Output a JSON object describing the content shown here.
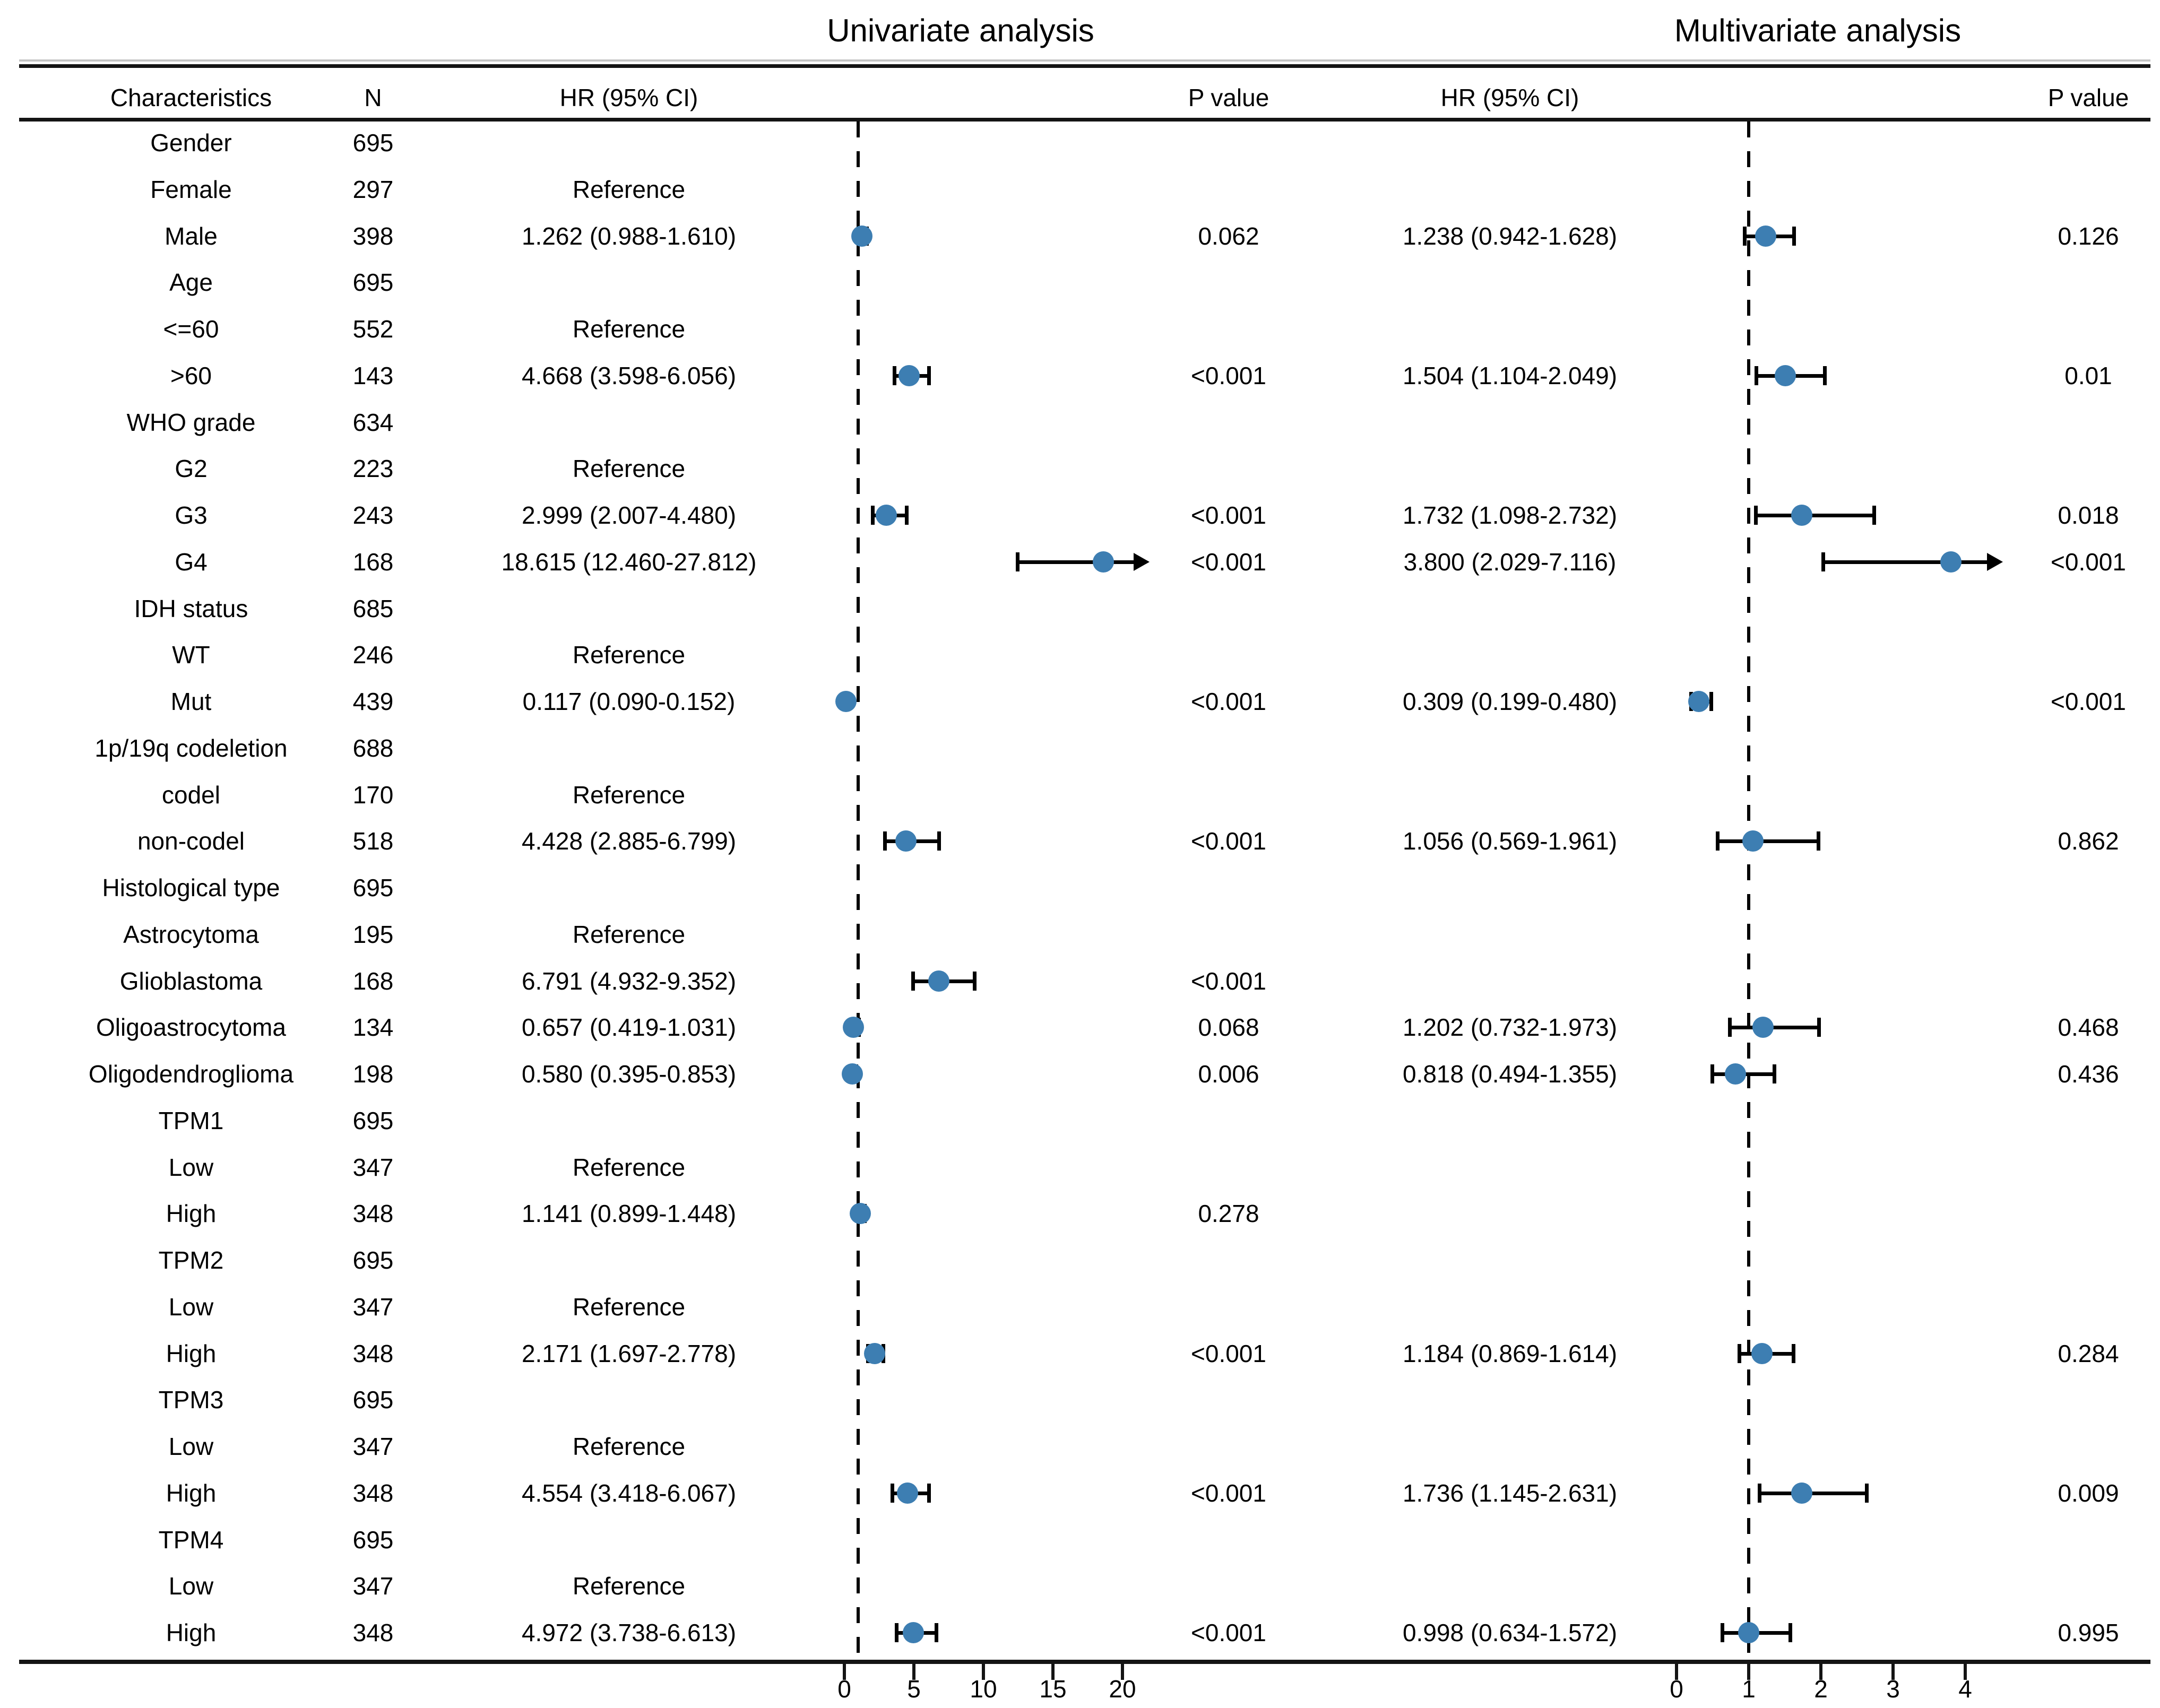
{
  "chart_data": {
    "type": "forest",
    "panels": [
      {
        "name": "Univariate analysis",
        "axis_ticks": [
          0,
          5,
          10,
          15,
          20
        ],
        "ref_line": 1
      },
      {
        "name": "Multivariate analysis",
        "axis_ticks": [
          0,
          1,
          2,
          3,
          4
        ],
        "ref_line": 1
      }
    ],
    "columns": [
      "Characteristics",
      "N",
      "HR (95% CI)",
      "P value",
      "HR (95% CI)",
      "P value"
    ],
    "marker_color": "#3d7eb2",
    "rows": [
      {
        "label": "Gender",
        "n": "695"
      },
      {
        "label": "Female",
        "n": "297",
        "uni_hr_text": "Reference"
      },
      {
        "label": "Male",
        "n": "398",
        "uni_hr_text": "1.262 (0.988-1.610)",
        "uni_p": "0.062",
        "uni": {
          "hr": 1.262,
          "lo": 0.988,
          "hi": 1.61,
          "arrow": false
        },
        "multi_hr_text": "1.238 (0.942-1.628)",
        "multi_p": "0.126",
        "multi": {
          "hr": 1.238,
          "lo": 0.942,
          "hi": 1.628,
          "arrow": false
        }
      },
      {
        "label": "Age",
        "n": "695"
      },
      {
        "label": "<=60",
        "n": "552",
        "uni_hr_text": "Reference"
      },
      {
        "label": ">60",
        "n": "143",
        "uni_hr_text": "4.668 (3.598-6.056)",
        "uni_p": "<0.001",
        "uni": {
          "hr": 4.668,
          "lo": 3.598,
          "hi": 6.056,
          "arrow": false
        },
        "multi_hr_text": "1.504 (1.104-2.049)",
        "multi_p": "0.01",
        "multi": {
          "hr": 1.504,
          "lo": 1.104,
          "hi": 2.049,
          "arrow": false
        }
      },
      {
        "label": "WHO grade",
        "n": "634"
      },
      {
        "label": "G2",
        "n": "223",
        "uni_hr_text": "Reference"
      },
      {
        "label": "G3",
        "n": "243",
        "uni_hr_text": "2.999 (2.007-4.480)",
        "uni_p": "<0.001",
        "uni": {
          "hr": 2.999,
          "lo": 2.007,
          "hi": 4.48,
          "arrow": false
        },
        "multi_hr_text": "1.732 (1.098-2.732)",
        "multi_p": "0.018",
        "multi": {
          "hr": 1.732,
          "lo": 1.098,
          "hi": 2.732,
          "arrow": false
        }
      },
      {
        "label": "G4",
        "n": "168",
        "uni_hr_text": "18.615 (12.460-27.812)",
        "uni_p": "<0.001",
        "uni": {
          "hr": 18.615,
          "lo": 12.46,
          "hi": 27.812,
          "arrow": true
        },
        "multi_hr_text": "3.800 (2.029-7.116)",
        "multi_p": "<0.001",
        "multi": {
          "hr": 3.8,
          "lo": 2.029,
          "hi": 7.116,
          "arrow": true
        }
      },
      {
        "label": "IDH status",
        "n": "685"
      },
      {
        "label": "WT",
        "n": "246",
        "uni_hr_text": "Reference"
      },
      {
        "label": "Mut",
        "n": "439",
        "uni_hr_text": "0.117 (0.090-0.152)",
        "uni_p": "<0.001",
        "uni": {
          "hr": 0.117,
          "lo": 0.09,
          "hi": 0.152,
          "arrow": false
        },
        "multi_hr_text": "0.309 (0.199-0.480)",
        "multi_p": "<0.001",
        "multi": {
          "hr": 0.309,
          "lo": 0.199,
          "hi": 0.48,
          "arrow": false
        }
      },
      {
        "label": "1p/19q codeletion",
        "n": "688"
      },
      {
        "label": "codel",
        "n": "170",
        "uni_hr_text": "Reference"
      },
      {
        "label": "non-codel",
        "n": "518",
        "uni_hr_text": "4.428 (2.885-6.799)",
        "uni_p": "<0.001",
        "uni": {
          "hr": 4.428,
          "lo": 2.885,
          "hi": 6.799,
          "arrow": false
        },
        "multi_hr_text": "1.056 (0.569-1.961)",
        "multi_p": "0.862",
        "multi": {
          "hr": 1.056,
          "lo": 0.569,
          "hi": 1.961,
          "arrow": false
        }
      },
      {
        "label": "Histological type",
        "n": "695"
      },
      {
        "label": "Astrocytoma",
        "n": "195",
        "uni_hr_text": "Reference"
      },
      {
        "label": "Glioblastoma",
        "n": "168",
        "uni_hr_text": "6.791 (4.932-9.352)",
        "uni_p": "<0.001",
        "uni": {
          "hr": 6.791,
          "lo": 4.932,
          "hi": 9.352,
          "arrow": false
        }
      },
      {
        "label": "Oligoastrocytoma",
        "n": "134",
        "uni_hr_text": "0.657 (0.419-1.031)",
        "uni_p": "0.068",
        "uni": {
          "hr": 0.657,
          "lo": 0.419,
          "hi": 1.031,
          "arrow": false
        },
        "multi_hr_text": "1.202 (0.732-1.973)",
        "multi_p": "0.468",
        "multi": {
          "hr": 1.202,
          "lo": 0.732,
          "hi": 1.973,
          "arrow": false
        }
      },
      {
        "label": "Oligodendroglioma",
        "n": "198",
        "uni_hr_text": "0.580 (0.395-0.853)",
        "uni_p": "0.006",
        "uni": {
          "hr": 0.58,
          "lo": 0.395,
          "hi": 0.853,
          "arrow": false
        },
        "multi_hr_text": "0.818 (0.494-1.355)",
        "multi_p": "0.436",
        "multi": {
          "hr": 0.818,
          "lo": 0.494,
          "hi": 1.355,
          "arrow": false
        }
      },
      {
        "label": "TPM1",
        "n": "695"
      },
      {
        "label": "Low",
        "n": "347",
        "uni_hr_text": "Reference"
      },
      {
        "label": "High",
        "n": "348",
        "uni_hr_text": "1.141 (0.899-1.448)",
        "uni_p": "0.278",
        "uni": {
          "hr": 1.141,
          "lo": 0.899,
          "hi": 1.448,
          "arrow": false
        }
      },
      {
        "label": "TPM2",
        "n": "695"
      },
      {
        "label": "Low",
        "n": "347",
        "uni_hr_text": "Reference"
      },
      {
        "label": "High",
        "n": "348",
        "uni_hr_text": "2.171 (1.697-2.778)",
        "uni_p": "<0.001",
        "uni": {
          "hr": 2.171,
          "lo": 1.697,
          "hi": 2.778,
          "arrow": false
        },
        "multi_hr_text": "1.184 (0.869-1.614)",
        "multi_p": "0.284",
        "multi": {
          "hr": 1.184,
          "lo": 0.869,
          "hi": 1.614,
          "arrow": false
        }
      },
      {
        "label": "TPM3",
        "n": "695"
      },
      {
        "label": "Low",
        "n": "347",
        "uni_hr_text": "Reference"
      },
      {
        "label": "High",
        "n": "348",
        "uni_hr_text": "4.554 (3.418-6.067)",
        "uni_p": "<0.001",
        "uni": {
          "hr": 4.554,
          "lo": 3.418,
          "hi": 6.067,
          "arrow": false
        },
        "multi_hr_text": "1.736 (1.145-2.631)",
        "multi_p": "0.009",
        "multi": {
          "hr": 1.736,
          "lo": 1.145,
          "hi": 2.631,
          "arrow": false
        }
      },
      {
        "label": "TPM4",
        "n": "695"
      },
      {
        "label": "Low",
        "n": "347",
        "uni_hr_text": "Reference"
      },
      {
        "label": "High",
        "n": "348",
        "uni_hr_text": "4.972 (3.738-6.613)",
        "uni_p": "<0.001",
        "uni": {
          "hr": 4.972,
          "lo": 3.738,
          "hi": 6.613,
          "arrow": false
        },
        "multi_hr_text": "0.998 (0.634-1.572)",
        "multi_p": "0.995",
        "multi": {
          "hr": 0.998,
          "lo": 0.634,
          "hi": 1.572,
          "arrow": false
        }
      }
    ]
  }
}
